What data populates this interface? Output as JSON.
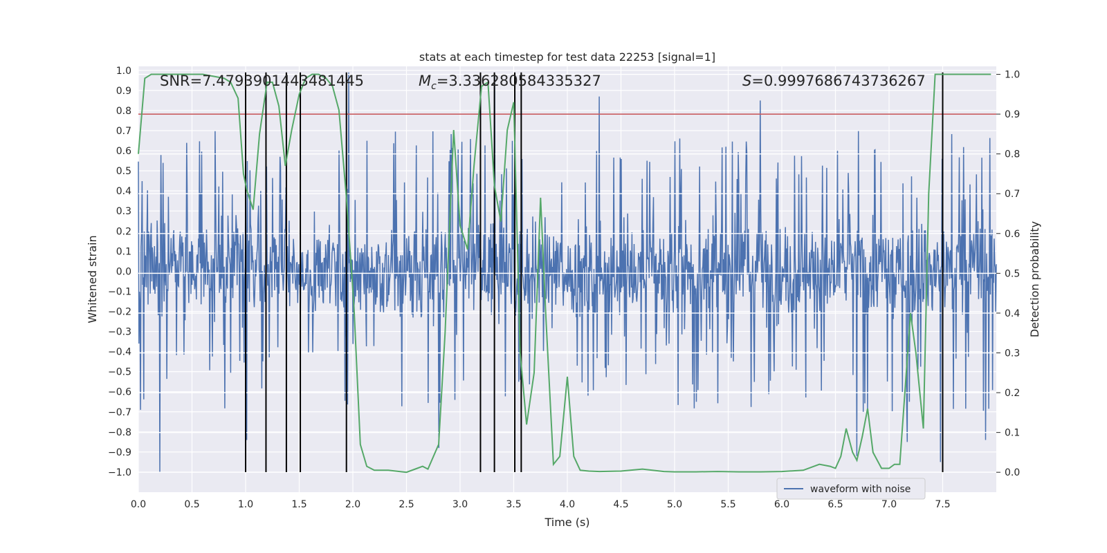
{
  "chart_data": {
    "type": "line",
    "title": "stats at each timestep for test data 22253 [signal=1]",
    "xlabel": "Time (s)",
    "ylabel": "Whitened strain",
    "y2label": "Detection probability",
    "xlim": [
      0.0,
      8.0
    ],
    "ylim": [
      -1.1,
      1.02
    ],
    "y2lim": [
      -0.05,
      1.02
    ],
    "xticks": [
      "0.0",
      "0.5",
      "1.0",
      "1.5",
      "2.0",
      "2.5",
      "3.0",
      "3.5",
      "4.0",
      "4.5",
      "5.0",
      "5.5",
      "6.0",
      "6.5",
      "7.0",
      "7.5"
    ],
    "yticks": [
      "1.0",
      "0.9",
      "0.8",
      "0.7",
      "0.6",
      "0.5",
      "0.4",
      "0.3",
      "0.2",
      "0.1",
      "0.0",
      "−0.1",
      "−0.2",
      "−0.3",
      "−0.4",
      "−0.5",
      "−0.6",
      "−0.7",
      "−0.8",
      "−0.9",
      "−1.0"
    ],
    "y2ticks": [
      "1.0",
      "0.9",
      "0.8",
      "0.7",
      "0.6",
      "0.5",
      "0.4",
      "0.3",
      "0.2",
      "0.1",
      "0.0"
    ],
    "annotations": {
      "snr": "SNR=7.479390144348144​5",
      "mc_symbol": "M",
      "mc_sub": "c",
      "mc_value": "=3.336280584335327",
      "s_symbol": "S",
      "s_value": "=0.9997686743736267"
    },
    "threshold": {
      "y2": 0.9,
      "color": "#c44e52"
    },
    "vlines": [
      1.0,
      1.19,
      1.38,
      1.51,
      1.94,
      3.19,
      3.32,
      3.51,
      3.57,
      7.5
    ],
    "vline_range": [
      -1.0,
      0.99
    ],
    "waveform_series": {
      "name": "waveform with noise",
      "color": "#4c72b0",
      "n_points": 1600,
      "typical_amplitude": 0.45,
      "peaks": [
        {
          "x": 0.2,
          "y": -1.0
        },
        {
          "x": 1.01,
          "y": -0.84
        },
        {
          "x": 1.96,
          "y": 0.99
        },
        {
          "x": 2.8,
          "y": -0.88
        },
        {
          "x": 3.32,
          "y": 0.98
        },
        {
          "x": 4.3,
          "y": 0.87
        },
        {
          "x": 5.8,
          "y": 0.85
        },
        {
          "x": 6.7,
          "y": -0.92
        },
        {
          "x": 7.48,
          "y": -0.95
        },
        {
          "x": 7.9,
          "y": -0.84
        },
        {
          "x": 7.17,
          "y": -0.85
        }
      ]
    },
    "probability_series": {
      "name": "detection probability",
      "color": "#55a868",
      "x": [
        0.0,
        0.06,
        0.12,
        0.2,
        0.3,
        0.4,
        0.5,
        0.6,
        0.7,
        0.8,
        0.86,
        0.93,
        0.98,
        1.01,
        1.07,
        1.13,
        1.2,
        1.25,
        1.31,
        1.37,
        1.43,
        1.5,
        1.56,
        1.62,
        1.68,
        1.75,
        1.81,
        1.87,
        1.94,
        2.01,
        2.07,
        2.13,
        2.2,
        2.26,
        2.33,
        2.4,
        2.5,
        2.6,
        2.65,
        2.7,
        2.8,
        2.86,
        2.94,
        3.0,
        3.07,
        3.13,
        3.2,
        3.26,
        3.32,
        3.38,
        3.44,
        3.5,
        3.56,
        3.62,
        3.69,
        3.75,
        3.8,
        3.87,
        3.93,
        4.0,
        4.06,
        4.12,
        4.2,
        4.3,
        4.5,
        4.7,
        4.9,
        5.0,
        5.2,
        5.4,
        5.6,
        5.8,
        6.0,
        6.2,
        6.35,
        6.45,
        6.5,
        6.55,
        6.6,
        6.66,
        6.7,
        6.75,
        6.8,
        6.85,
        6.93,
        7.0,
        7.05,
        7.1,
        7.2,
        7.25,
        7.32,
        7.37,
        7.43,
        7.5,
        7.55,
        7.6,
        7.7,
        7.8,
        7.95
      ],
      "y": [
        0.8,
        0.99,
        1.0,
        1.0,
        1.0,
        1.0,
        1.0,
        1.0,
        0.995,
        0.99,
        0.98,
        0.94,
        0.75,
        0.71,
        0.66,
        0.85,
        0.98,
        0.98,
        0.92,
        0.77,
        0.86,
        0.95,
        0.99,
        1.0,
        1.0,
        0.99,
        0.97,
        0.91,
        0.69,
        0.42,
        0.07,
        0.015,
        0.005,
        0.005,
        0.005,
        0.003,
        0.0,
        0.01,
        0.015,
        0.008,
        0.07,
        0.35,
        0.86,
        0.62,
        0.56,
        0.77,
        0.97,
        0.98,
        0.72,
        0.63,
        0.86,
        0.93,
        0.3,
        0.12,
        0.25,
        0.69,
        0.39,
        0.02,
        0.04,
        0.24,
        0.04,
        0.005,
        0.003,
        0.002,
        0.003,
        0.008,
        0.002,
        0.001,
        0.001,
        0.002,
        0.001,
        0.001,
        0.002,
        0.005,
        0.02,
        0.015,
        0.01,
        0.04,
        0.11,
        0.05,
        0.03,
        0.09,
        0.16,
        0.05,
        0.01,
        0.01,
        0.02,
        0.02,
        0.4,
        0.3,
        0.11,
        0.7,
        1.0,
        1.0,
        1.0,
        1.0,
        1.0,
        1.0,
        1.0
      ]
    }
  },
  "legend": {
    "label": "waveform with noise"
  }
}
